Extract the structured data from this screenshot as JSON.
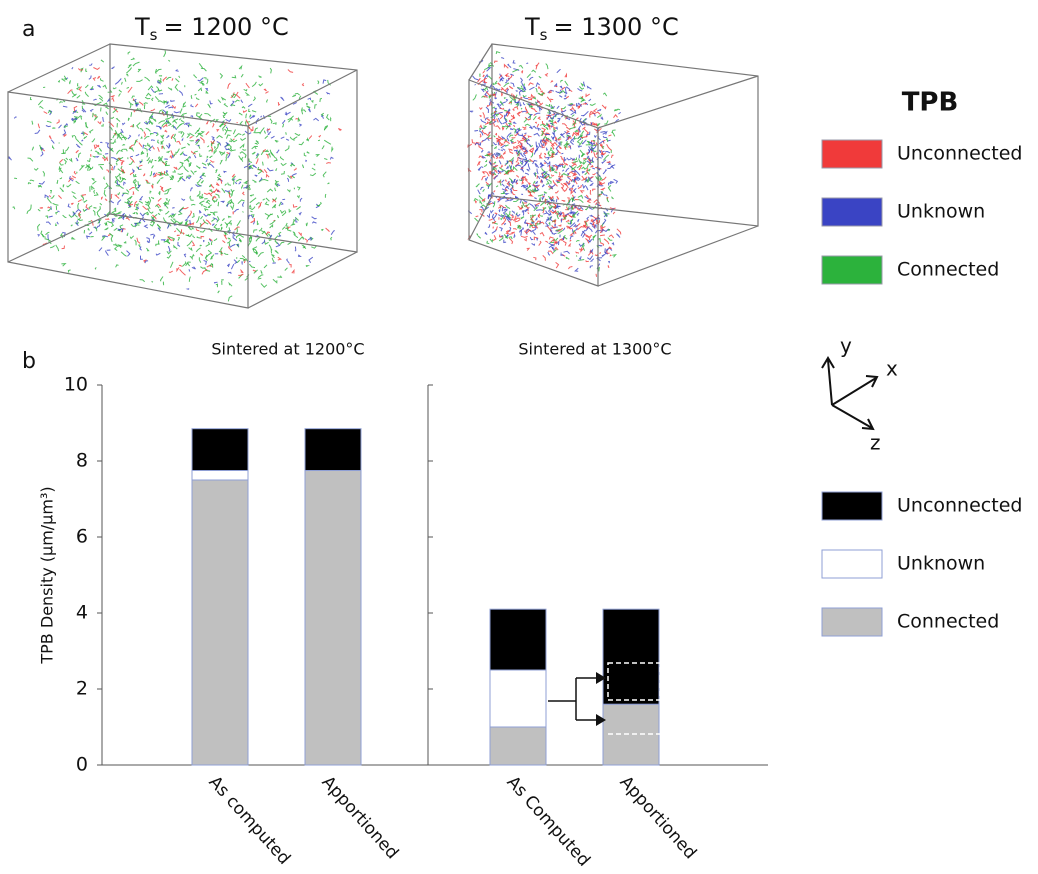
{
  "panel_labels": [
    "a",
    "b"
  ],
  "panel_a": {
    "titles": [
      {
        "symbol": "T",
        "subscript": "s",
        "text": "=  1200 °C"
      },
      {
        "symbol": "T",
        "subscript": "s",
        "text": "= 1300 °C"
      }
    ],
    "legend_title": "TPB",
    "legend": [
      {
        "name": "Unconnected",
        "color": "#f03a3a"
      },
      {
        "name": "Unknown",
        "color": "#3a44c4"
      },
      {
        "name": "Connected",
        "color": "#2cb23c"
      }
    ]
  },
  "axes_glyph": [
    "y",
    "x",
    "z"
  ],
  "chart_data": {
    "type": "bar",
    "stacked": true,
    "ylabel": "TPB Density (μm/μm³)",
    "groups": [
      "Sintered at 1200°C",
      "Sintered at 1300°C"
    ],
    "categories": [
      "As computed",
      "Apportioned",
      "As Computed",
      "Apportioned"
    ],
    "series": [
      {
        "name": "Connected",
        "color": "#c0c0c0",
        "values": [
          7.5,
          7.75,
          1.0,
          1.6
        ]
      },
      {
        "name": "Unknown",
        "color": "#ffffff",
        "values": [
          0.25,
          0,
          1.5,
          0
        ]
      },
      {
        "name": "Unconnected",
        "color": "#000000",
        "values": [
          1.1,
          1.1,
          1.6,
          2.5
        ]
      }
    ],
    "ylim": [
      0,
      10
    ],
    "yticks": [
      0,
      2,
      4,
      6,
      8,
      10
    ]
  }
}
